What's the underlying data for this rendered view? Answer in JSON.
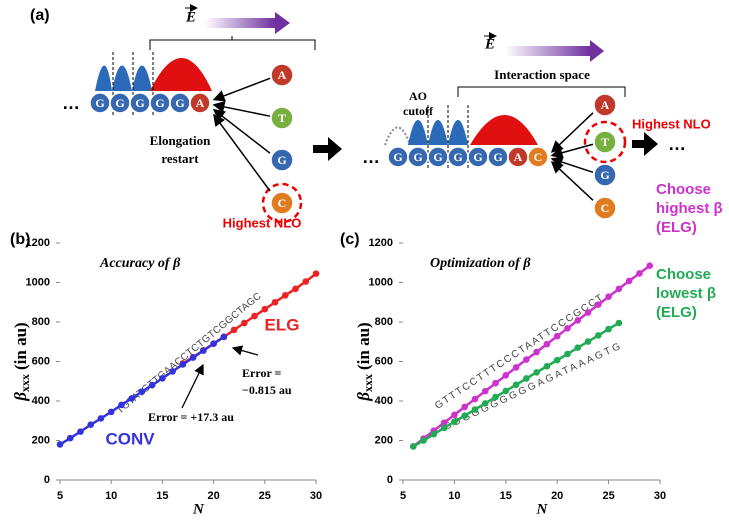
{
  "diagram": {
    "panel": "(a)",
    "field": "E",
    "ellipsis": "…",
    "left_chain": [
      "G",
      "G",
      "G",
      "G",
      "G",
      "A"
    ],
    "left_choices": [
      "A",
      "T",
      "G",
      "C"
    ],
    "left_note": [
      "Elongation",
      "restart"
    ],
    "left_highlight": "Highest NLO",
    "ao_cutoff": [
      "AO",
      "cutoff"
    ],
    "interaction": "Interaction space",
    "right_chain": [
      "G",
      "G",
      "G",
      "G",
      "G",
      "G",
      "A",
      "C"
    ],
    "right_choices": [
      "A",
      "T",
      "G",
      "C"
    ],
    "right_highlight": "Highest NLO"
  },
  "chart_data": [
    {
      "type": "line",
      "panel": "(b)",
      "title": "Accuracy of β",
      "ylabel": "β",
      "ylabel_sub": "xxx",
      "ylabel_unit": "(in au)",
      "xlabel": "N",
      "xlim": [
        5,
        30
      ],
      "xticks": [
        5,
        10,
        15,
        20,
        25,
        30
      ],
      "ylim": [
        0,
        1200
      ],
      "yticks": [
        0,
        200,
        400,
        600,
        800,
        1000,
        1200
      ],
      "sequences": [
        "TGTATGTTGAACCTCTGTCGGCTAGC"
      ],
      "annotations": [
        [
          "Error =",
          "−0.815 au"
        ],
        [
          "Error = +17.3 au"
        ]
      ],
      "series": [
        {
          "name": "ELG",
          "color": "#ee2222",
          "x": [
            17,
            18,
            19,
            20,
            21,
            22,
            23,
            24,
            25,
            26,
            27,
            28,
            29,
            30
          ],
          "values": [
            590,
            622,
            657,
            690,
            724,
            760,
            795,
            830,
            865,
            900,
            935,
            968,
            1005,
            1045
          ]
        },
        {
          "name": "CONV",
          "color": "#3333dd",
          "x": [
            5,
            6,
            7,
            8,
            9,
            10,
            11,
            12,
            13,
            14,
            15,
            16,
            17,
            18,
            19,
            20,
            21
          ],
          "values": [
            180,
            212,
            245,
            280,
            312,
            345,
            380,
            413,
            447,
            480,
            515,
            550,
            585,
            620,
            655,
            690,
            725
          ]
        }
      ]
    },
    {
      "type": "line",
      "panel": "(c)",
      "title": "Optimization of β",
      "ylabel": "β",
      "ylabel_sub": "xxx",
      "ylabel_unit": "(in au)",
      "xlabel": "N",
      "xlim": [
        5,
        30
      ],
      "xticks": [
        5,
        10,
        15,
        20,
        25,
        30
      ],
      "ylim": [
        0,
        1200
      ],
      "yticks": [
        0,
        200,
        400,
        600,
        800,
        1000,
        1200
      ],
      "sequences": [
        "GTTTCCTTTCCCTAATTCCCGCCT",
        "GGGGGGGGGGAGATAAAGTG"
      ],
      "annotations": [],
      "series": [
        {
          "name": [
            "Choose",
            "highest β",
            "(ELG)"
          ],
          "color": "#cc33cc",
          "x": [
            6,
            7,
            8,
            9,
            10,
            11,
            12,
            13,
            14,
            15,
            16,
            17,
            18,
            19,
            20,
            21,
            22,
            23,
            24,
            25,
            26,
            27,
            28,
            29
          ],
          "values": [
            170,
            210,
            250,
            290,
            330,
            370,
            410,
            450,
            490,
            530,
            570,
            610,
            648,
            688,
            728,
            768,
            808,
            848,
            888,
            928,
            968,
            1008,
            1046,
            1085
          ]
        },
        {
          "name": [
            "Choose",
            "lowest β",
            "(ELG)"
          ],
          "color": "#22aa55",
          "x": [
            6,
            7,
            8,
            9,
            10,
            11,
            12,
            13,
            14,
            15,
            16,
            17,
            18,
            19,
            20,
            21,
            22,
            23,
            24,
            25,
            26
          ],
          "values": [
            170,
            200,
            232,
            264,
            295,
            326,
            357,
            388,
            420,
            451,
            482,
            514,
            545,
            576,
            607,
            638,
            670,
            701,
            732,
            764,
            795
          ]
        }
      ]
    }
  ]
}
